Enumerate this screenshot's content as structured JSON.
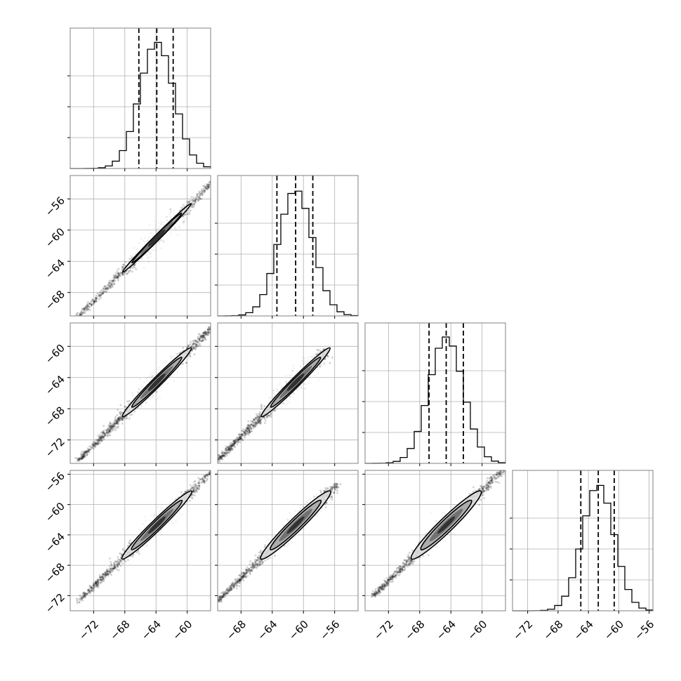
{
  "chart_data": {
    "type": "corner",
    "parameters": 4,
    "grid": true,
    "histogram_bins": 20,
    "axes": [
      {
        "range": [
          -75,
          -57
        ],
        "ticks": [
          -72,
          -68,
          -64,
          -60
        ],
        "tick_labels": [
          "−72",
          "−68",
          "−64",
          "−60"
        ]
      },
      {
        "range": [
          -71,
          -53
        ],
        "ticks": [
          -68,
          -64,
          -60,
          -56
        ],
        "tick_labels": [
          "−68",
          "−64",
          "−60",
          "−56"
        ]
      },
      {
        "range": [
          -75,
          -57
        ],
        "ticks": [
          -72,
          -68,
          -64,
          -60
        ],
        "tick_labels": [
          "−72",
          "−68",
          "−64",
          "−60"
        ]
      },
      {
        "range": [
          -74,
          -55.5
        ],
        "ticks": [
          -72,
          -68,
          -64,
          -60,
          -56
        ],
        "tick_labels": [
          "−72",
          "−68",
          "−64",
          "−60",
          "−56"
        ]
      }
    ],
    "diagonal": [
      {
        "quantiles": [
          -66.2,
          -63.9,
          -61.8
        ],
        "peak": -63.9,
        "sigma": 2.2
      },
      {
        "quantiles": [
          -63.4,
          -61.0,
          -58.8
        ],
        "peak": -61.0,
        "sigma": 2.2
      },
      {
        "quantiles": [
          -66.8,
          -64.6,
          -62.4
        ],
        "peak": -64.6,
        "sigma": 2.2
      },
      {
        "quantiles": [
          -65.0,
          -62.7,
          -60.6
        ],
        "peak": -62.7,
        "sigma": 2.1
      }
    ],
    "scatter_panels": [
      {
        "row": 1,
        "col": 0,
        "center": [
          -63.9,
          -61.0
        ],
        "corr": 0.995,
        "extent": [
          -74,
          -53
        ]
      },
      {
        "row": 2,
        "col": 0,
        "center": [
          -63.9,
          -64.6
        ],
        "corr": 0.985,
        "extent": [
          -74,
          -57
        ]
      },
      {
        "row": 2,
        "col": 1,
        "center": [
          -61.0,
          -64.6
        ],
        "corr": 0.985,
        "extent": [
          -71,
          -57
        ]
      },
      {
        "row": 3,
        "col": 0,
        "center": [
          -63.9,
          -62.7
        ],
        "corr": 0.98,
        "extent": [
          -74,
          -55.5
        ]
      },
      {
        "row": 3,
        "col": 1,
        "center": [
          -61.0,
          -62.7
        ],
        "corr": 0.97,
        "extent": [
          -71,
          -55.5
        ]
      },
      {
        "row": 3,
        "col": 2,
        "center": [
          -64.6,
          -62.7
        ],
        "corr": 0.965,
        "extent": [
          -74,
          -57
        ]
      }
    ]
  }
}
